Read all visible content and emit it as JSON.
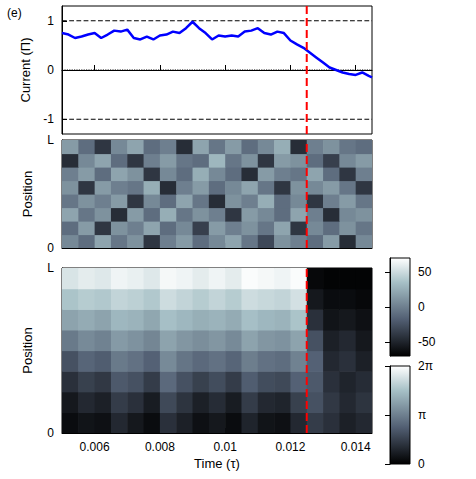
{
  "chart_data": [
    {
      "type": "line",
      "panel_label": "(e)",
      "ylabel": "Current (Π)",
      "color": "#0000ff",
      "x": [
        0.005,
        0.0052,
        0.0054,
        0.0056,
        0.0058,
        0.006,
        0.0062,
        0.0064,
        0.0066,
        0.0068,
        0.007,
        0.0072,
        0.0074,
        0.0076,
        0.0078,
        0.008,
        0.0082,
        0.0084,
        0.0086,
        0.0088,
        0.009,
        0.0092,
        0.0094,
        0.0096,
        0.0098,
        0.01,
        0.0102,
        0.0104,
        0.0106,
        0.0108,
        0.011,
        0.0112,
        0.0114,
        0.0116,
        0.0118,
        0.012,
        0.0122,
        0.0124,
        0.0126,
        0.0128,
        0.013,
        0.0132,
        0.0134,
        0.0136,
        0.0138,
        0.014,
        0.0142,
        0.0144,
        0.0145
      ],
      "values": [
        0.75,
        0.72,
        0.65,
        0.68,
        0.72,
        0.75,
        0.65,
        0.72,
        0.8,
        0.78,
        0.82,
        0.65,
        0.62,
        0.68,
        0.62,
        0.7,
        0.72,
        0.78,
        0.75,
        0.85,
        0.98,
        0.85,
        0.75,
        0.62,
        0.7,
        0.68,
        0.7,
        0.68,
        0.78,
        0.8,
        0.85,
        0.75,
        0.72,
        0.78,
        0.75,
        0.6,
        0.52,
        0.45,
        0.35,
        0.25,
        0.15,
        0.05,
        0.0,
        -0.05,
        -0.08,
        -0.1,
        -0.05,
        -0.12,
        -0.15
      ],
      "xlim": [
        0.005,
        0.0145
      ],
      "xticks": [
        0.006,
        0.008,
        0.01,
        0.012,
        0.014
      ],
      "ylim": [
        -1.3,
        1.3
      ],
      "yticks": [
        -1,
        0,
        1
      ],
      "tick_labels": "y",
      "hlines": [
        {
          "value": 1,
          "line_style": "dashed",
          "color": "#000000"
        },
        {
          "value": -1,
          "line_style": "dashed",
          "color": "#000000"
        },
        {
          "value": 0,
          "line_style": "dotted",
          "color": "#000000"
        }
      ],
      "vline": {
        "value": 0.0125,
        "line_style": "dashed",
        "color": "#ff0000"
      }
    },
    {
      "type": "heatmap",
      "ylabel": "Position",
      "xlim": [
        0.005,
        0.0145
      ],
      "xticks": [
        0.006,
        0.008,
        0.01,
        0.012,
        0.014
      ],
      "ylim": [
        0,
        1
      ],
      "yticks": [
        0,
        {
          "value": 1,
          "label": "L"
        }
      ],
      "tick_labels": "y",
      "time_edges": [
        0.005,
        0.0055,
        0.006,
        0.0065,
        0.007,
        0.0075,
        0.008,
        0.0085,
        0.009,
        0.0095,
        0.01,
        0.0105,
        0.011,
        0.0115,
        0.012,
        0.0125,
        0.013,
        0.0135,
        0.014,
        0.0145
      ],
      "position_edges": [
        0,
        0.125,
        0.25,
        0.375,
        0.5,
        0.625,
        0.75,
        0.875,
        1
      ],
      "cells": [
        [
          5,
          -10,
          20,
          -5,
          10,
          -40,
          0,
          15,
          -10,
          5,
          20,
          -5,
          -30,
          10,
          0,
          -10,
          15,
          -45,
          5
        ],
        [
          -10,
          15,
          -40,
          10,
          0,
          20,
          -10,
          5,
          -35,
          15,
          0,
          10,
          -5,
          20,
          -40,
          5,
          -10,
          10,
          -5
        ],
        [
          20,
          -5,
          10,
          -45,
          15,
          -10,
          25,
          -5,
          10,
          0,
          -40,
          15,
          5,
          -10,
          20,
          0,
          -45,
          5,
          10
        ],
        [
          -5,
          10,
          0,
          15,
          -40,
          5,
          -10,
          20,
          -5,
          -45,
          10,
          0,
          25,
          -10,
          5,
          -40,
          0,
          15,
          -5
        ],
        [
          10,
          -40,
          15,
          0,
          -5,
          25,
          -45,
          0,
          15,
          -10,
          5,
          20,
          -5,
          -40,
          10,
          5,
          15,
          -5,
          -40
        ],
        [
          0,
          15,
          -10,
          20,
          10,
          -40,
          5,
          -10,
          25,
          5,
          -10,
          -45,
          15,
          0,
          -5,
          20,
          -10,
          -40,
          0
        ],
        [
          -45,
          5,
          20,
          -10,
          -40,
          0,
          15,
          -5,
          -10,
          30,
          -5,
          10,
          -40,
          15,
          10,
          -10,
          -35,
          5,
          15
        ],
        [
          15,
          -10,
          -40,
          5,
          20,
          -10,
          0,
          -45,
          20,
          -5,
          15,
          -10,
          5,
          25,
          -45,
          0,
          10,
          -5,
          -10
        ]
      ],
      "colorbar_range": [
        -70,
        70
      ],
      "colorbar_ticks": [
        -50,
        0,
        50
      ],
      "vline": {
        "value": 0.0125,
        "line_style": "dashed",
        "color": "#ff0000"
      }
    },
    {
      "type": "heatmap",
      "ylabel": "Position",
      "xlabel": "Time (τ)",
      "xlim": [
        0.005,
        0.0145
      ],
      "xticks": [
        0.006,
        0.008,
        0.01,
        0.012,
        0.014
      ],
      "ylim": [
        0,
        1
      ],
      "yticks": [
        0,
        {
          "value": 1,
          "label": "L"
        }
      ],
      "tick_labels": true,
      "time_edges": [
        0.005,
        0.0055,
        0.006,
        0.0065,
        0.007,
        0.0075,
        0.008,
        0.0085,
        0.009,
        0.0095,
        0.01,
        0.0105,
        0.011,
        0.0115,
        0.012,
        0.0125,
        0.013,
        0.0135,
        0.014,
        0.0145
      ],
      "position_edges": [
        0,
        0.125,
        0.25,
        0.375,
        0.5,
        0.625,
        0.75,
        0.875,
        1
      ],
      "cells": [
        [
          0.3,
          0.5,
          0.4,
          1.0,
          0.6,
          0.3,
          1.2,
          0.8,
          0.4,
          0.6,
          0.3,
          0.9,
          0.5,
          0.4,
          1.0,
          1.5,
          1.2,
          0.8,
          1.0
        ],
        [
          0.6,
          1.0,
          0.8,
          1.5,
          1.2,
          0.7,
          1.8,
          1.3,
          0.8,
          1.1,
          0.7,
          1.5,
          1.0,
          0.9,
          1.6,
          2.0,
          1.4,
          1.0,
          1.3
        ],
        [
          1.2,
          1.6,
          1.4,
          2.2,
          2.0,
          1.5,
          2.6,
          2.0,
          1.6,
          1.9,
          1.5,
          2.3,
          1.9,
          1.8,
          2.4,
          2.2,
          1.2,
          0.9,
          1.1
        ],
        [
          2.0,
          2.5,
          2.3,
          3.0,
          2.8,
          2.4,
          3.4,
          2.9,
          2.6,
          2.8,
          2.5,
          3.1,
          2.8,
          2.7,
          3.2,
          2.4,
          1.0,
          1.2,
          0.8
        ],
        [
          3.0,
          3.4,
          3.2,
          3.8,
          3.6,
          3.3,
          4.0,
          3.7,
          3.5,
          3.7,
          3.4,
          4.0,
          3.7,
          3.6,
          4.0,
          2.0,
          0.8,
          1.0,
          0.6
        ],
        [
          4.0,
          4.2,
          4.0,
          4.5,
          4.4,
          4.1,
          4.7,
          4.5,
          4.3,
          4.4,
          4.2,
          4.7,
          4.5,
          4.4,
          4.8,
          1.2,
          0.5,
          0.6,
          0.4
        ],
        [
          4.8,
          5.0,
          4.9,
          5.2,
          5.1,
          4.9,
          5.4,
          5.2,
          5.0,
          5.2,
          5.0,
          5.4,
          5.3,
          5.2,
          5.5,
          0.6,
          0.3,
          0.3,
          0.2
        ],
        [
          5.6,
          5.8,
          5.7,
          6.0,
          5.9,
          5.7,
          6.1,
          6.0,
          5.8,
          6.0,
          5.8,
          6.2,
          6.1,
          6.0,
          6.2,
          0.2,
          0.1,
          0.1,
          0.1
        ]
      ],
      "colorbar_range": [
        0,
        6.28318
      ],
      "colorbar_ticks": [
        0,
        {
          "value": 3.14159,
          "label": "π"
        },
        {
          "value": 6.28318,
          "label": "2π"
        }
      ],
      "vline": {
        "value": 0.0125,
        "line_style": "dashed",
        "color": "#ff0000"
      }
    }
  ]
}
